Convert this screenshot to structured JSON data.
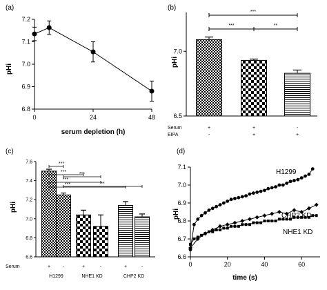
{
  "chart_data": [
    {
      "panel": "(a)",
      "type": "line",
      "xlabel": "serum depletion (h)",
      "ylabel": "pHi",
      "xlim": [
        0,
        48
      ],
      "ylim": [
        6.8,
        7.2
      ],
      "xticks": [
        "0",
        "24",
        "48"
      ],
      "yticks": [
        "6.8",
        "6.9",
        "7.0",
        "7.1",
        "7.2"
      ],
      "x": [
        0,
        6,
        24,
        48
      ],
      "y": [
        7.135,
        7.163,
        7.055,
        6.88
      ],
      "err": [
        0.03,
        0.03,
        0.045,
        0.045
      ]
    },
    {
      "panel": "(b)",
      "type": "bar",
      "ylabel": "pHi",
      "ylim": [
        6.5,
        7.3
      ],
      "yticks": [
        "6.5",
        "7.0"
      ],
      "values": [
        7.09,
        6.93,
        6.83
      ],
      "err": [
        0.02,
        0.01,
        0.025
      ],
      "patterns": [
        "checker-fine",
        "checker-bold",
        "horizontal-stripes"
      ],
      "conditions": [
        {
          "name": "Serum",
          "marks": [
            "+",
            "+",
            "-"
          ]
        },
        {
          "name": "EIPA",
          "marks": [
            "-",
            "+",
            "+"
          ]
        }
      ],
      "significance": [
        {
          "from": 0,
          "to": 2,
          "label": "***"
        },
        {
          "from": 0,
          "to": 1,
          "label": "***"
        },
        {
          "from": 1,
          "to": 2,
          "label": "**"
        }
      ]
    },
    {
      "panel": "(c)",
      "type": "bar",
      "ylabel": "pHi",
      "ylim": [
        6.6,
        7.6
      ],
      "yticks": [
        "6.6",
        "6.8",
        "7.0",
        "7.2",
        "7.4",
        "7.6"
      ],
      "groups": [
        "H1299",
        "NHE1 KD",
        "CHP2 KD"
      ],
      "serum_label": "Serum",
      "serum_marks": [
        "+",
        "-",
        "+",
        "-",
        "+",
        "-"
      ],
      "values": [
        7.5,
        7.25,
        7.04,
        6.92,
        7.14,
        7.02
      ],
      "err": [
        0.02,
        0.02,
        0.05,
        0.12,
        0.04,
        0.03
      ],
      "patterns": [
        "checker-fine",
        "checker-fine",
        "checker-bold",
        "checker-bold",
        "horizontal-stripes",
        "horizontal-stripes"
      ],
      "significance": [
        {
          "from": 0,
          "to": 1,
          "label": "***"
        },
        {
          "from": 0,
          "to": 2,
          "label": "***"
        },
        {
          "from": 0,
          "to": 3,
          "label": "***"
        },
        {
          "from": 0,
          "to": 4,
          "label": "***"
        },
        {
          "from": 1,
          "to": 3,
          "label": "***"
        },
        {
          "from": 1,
          "to": 5,
          "label": "**"
        }
      ]
    },
    {
      "panel": "(d)",
      "type": "line",
      "xlabel": "time (s)",
      "ylabel": "pHi",
      "xlim": [
        0,
        70
      ],
      "ylim": [
        6.6,
        7.1
      ],
      "xticks": [
        "0",
        "20",
        "40",
        "60"
      ],
      "yticks": [
        "6.6",
        "6.7",
        "6.8",
        "6.9",
        "7.0",
        "7.1"
      ],
      "series": [
        {
          "name": "H1299",
          "marker": "circle",
          "x": [
            0,
            2,
            4,
            6,
            8,
            10,
            12,
            14,
            16,
            18,
            20,
            22,
            24,
            26,
            28,
            30,
            32,
            34,
            36,
            38,
            40,
            42,
            44,
            46,
            48,
            50,
            52,
            54,
            56,
            58,
            60,
            62,
            64,
            66
          ],
          "y": [
            6.64,
            6.78,
            6.81,
            6.83,
            6.845,
            6.86,
            6.87,
            6.88,
            6.89,
            6.9,
            6.91,
            6.92,
            6.925,
            6.93,
            6.935,
            6.94,
            6.95,
            6.955,
            6.96,
            6.965,
            6.97,
            6.98,
            6.985,
            6.99,
            7.0,
            7.0,
            7.01,
            7.02,
            7.025,
            7.03,
            7.04,
            7.05,
            7.06,
            7.09
          ]
        },
        {
          "name": "CHP2 KD",
          "marker": "diamond",
          "x": [
            0,
            4,
            8,
            12,
            16,
            20,
            24,
            28,
            32,
            36,
            40,
            44,
            48,
            52,
            56,
            60,
            64,
            68
          ],
          "y": [
            6.65,
            6.7,
            6.73,
            6.75,
            6.77,
            6.78,
            6.79,
            6.8,
            6.81,
            6.82,
            6.83,
            6.84,
            6.85,
            6.84,
            6.86,
            6.85,
            6.87,
            6.89
          ]
        },
        {
          "name": "NHE1 KD",
          "marker": "square",
          "x": [
            0,
            2,
            4,
            6,
            8,
            10,
            12,
            14,
            16,
            18,
            20,
            22,
            24,
            26,
            28,
            30,
            32,
            34,
            36,
            38,
            40,
            42,
            44,
            46,
            48,
            50,
            52,
            54,
            56,
            58,
            60,
            62,
            64,
            66,
            68
          ],
          "y": [
            6.67,
            6.7,
            6.71,
            6.72,
            6.73,
            6.74,
            6.74,
            6.75,
            6.75,
            6.76,
            6.76,
            6.77,
            6.77,
            6.77,
            6.78,
            6.78,
            6.78,
            6.79,
            6.79,
            6.79,
            6.8,
            6.8,
            6.8,
            6.8,
            6.81,
            6.81,
            6.81,
            6.81,
            6.82,
            6.82,
            6.82,
            6.82,
            6.82,
            6.83,
            6.83
          ]
        }
      ]
    }
  ]
}
